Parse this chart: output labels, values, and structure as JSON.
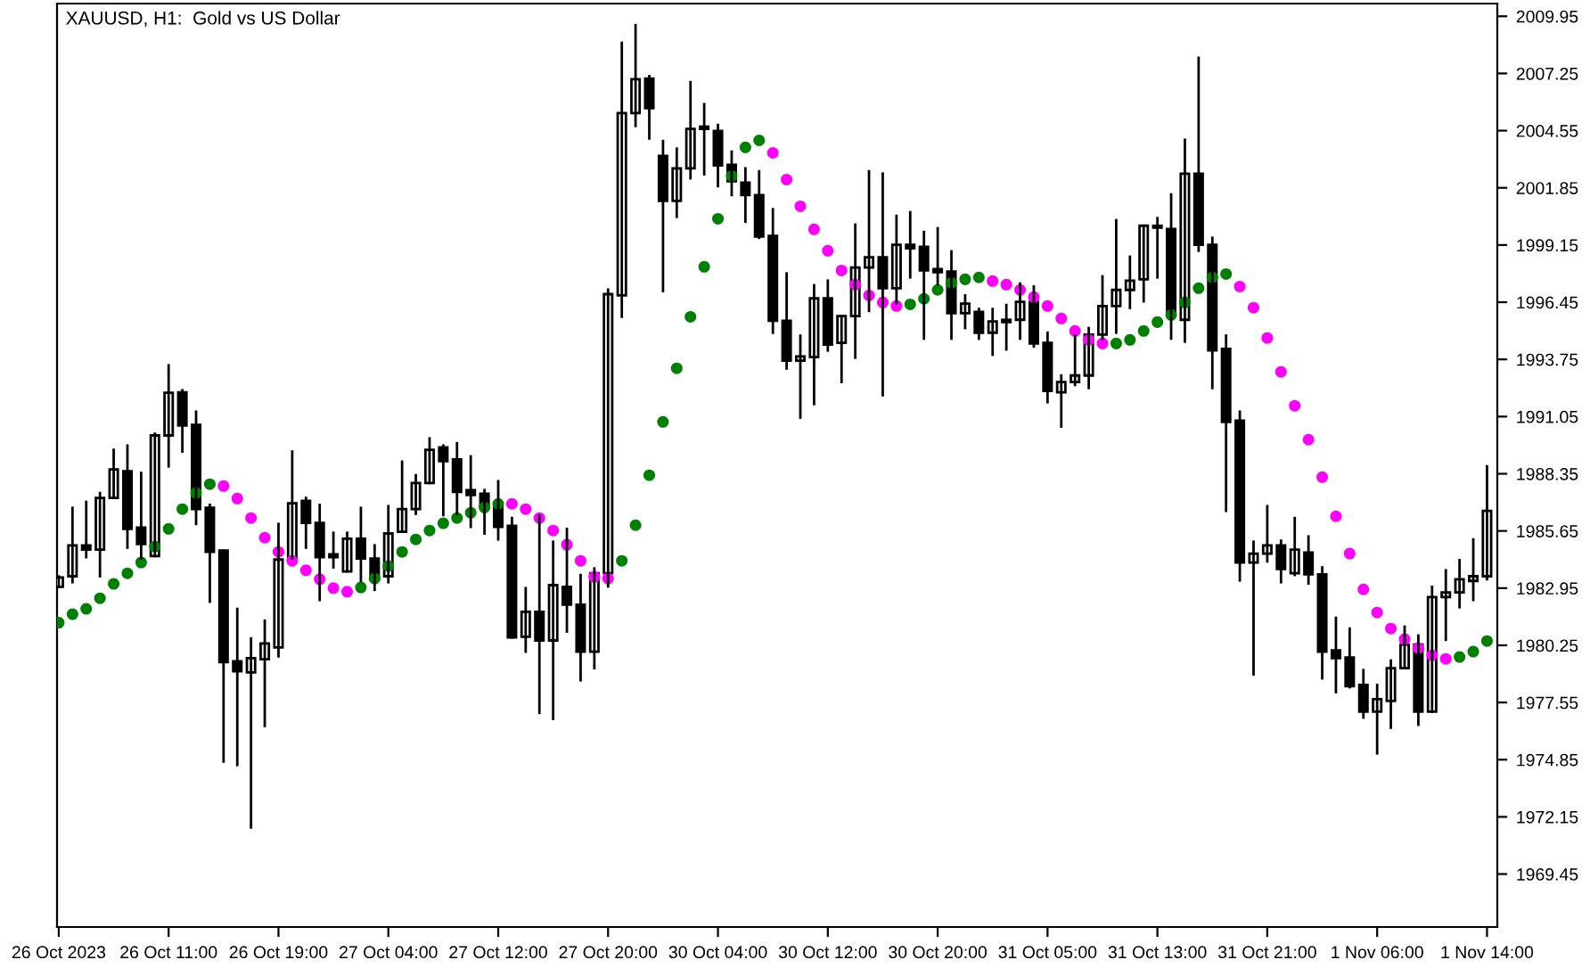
{
  "chart_data": {
    "type": "candlestick",
    "title": "XAUUSD, H1:  Gold vs US Dollar",
    "categories": [
      "26 Oct 2023",
      null,
      null,
      null,
      null,
      null,
      null,
      null,
      "26 Oct 11:00",
      null,
      null,
      null,
      null,
      null,
      null,
      null,
      "26 Oct 19:00",
      null,
      null,
      null,
      null,
      null,
      null,
      null,
      "27 Oct 04:00",
      null,
      null,
      null,
      null,
      null,
      null,
      null,
      "27 Oct 12:00",
      null,
      null,
      null,
      null,
      null,
      null,
      null,
      "27 Oct 20:00",
      null,
      null,
      null,
      null,
      null,
      null,
      null,
      "30 Oct 04:00",
      null,
      null,
      null,
      null,
      null,
      null,
      null,
      "30 Oct 12:00",
      null,
      null,
      null,
      null,
      null,
      null,
      null,
      "30 Oct 20:00",
      null,
      null,
      null,
      null,
      null,
      null,
      null,
      "31 Oct 05:00",
      null,
      null,
      null,
      null,
      null,
      null,
      null,
      "31 Oct 13:00",
      null,
      null,
      null,
      null,
      null,
      null,
      null,
      "31 Oct 21:00",
      null,
      null,
      null,
      null,
      null,
      null,
      null,
      "1 Nov 06:00",
      null,
      null,
      null,
      null,
      null,
      null,
      null,
      "1 Nov 14:00"
    ],
    "ylim": [
      1966.95,
      2010.55
    ],
    "yticks": [
      1969.45,
      1972.15,
      1974.85,
      1977.55,
      1980.25,
      1982.95,
      1985.65,
      1988.35,
      1991.05,
      1993.75,
      1996.45,
      1999.15,
      2001.85,
      2004.55,
      2007.25,
      2009.95
    ],
    "grid": false,
    "series": [
      {
        "color": "#000000",
        "ohlc": [
          [
            1983.01,
            1983.5,
            1983.0,
            1983.45
          ],
          [
            1983.51,
            1986.74,
            1983.23,
            1984.97
          ],
          [
            1984.97,
            1987.02,
            1984.41,
            1984.77
          ],
          [
            1984.77,
            1987.44,
            1983.51,
            1987.21
          ],
          [
            1987.21,
            1989.48,
            1987.21,
            1988.56
          ],
          [
            1988.47,
            1989.68,
            1984.86,
            1985.75
          ],
          [
            1985.81,
            1988.39,
            1984.35,
            1985.03
          ],
          [
            1984.46,
            1990.24,
            1984.46,
            1990.16
          ],
          [
            1990.16,
            1993.47,
            1988.7,
            1992.17
          ],
          [
            1992.2,
            1992.29,
            1989.4,
            1990.63
          ],
          [
            1990.66,
            1991.28,
            1985.98,
            1986.68
          ],
          [
            1986.74,
            1986.88,
            1982.31,
            1984.66
          ],
          [
            1984.72,
            1984.72,
            1974.76,
            1979.45
          ],
          [
            1979.5,
            1981.97,
            1974.6,
            1979.02
          ],
          [
            1978.97,
            1980.57,
            1971.65,
            1979.64
          ],
          [
            1979.59,
            1981.41,
            1976.44,
            1980.34
          ],
          [
            1980.15,
            1985.98,
            1979.73,
            1984.3
          ],
          [
            1984.35,
            1989.4,
            1984.35,
            1986.96
          ],
          [
            1987.07,
            1987.21,
            1984.86,
            1986.03
          ],
          [
            1986.03,
            1986.88,
            1982.39,
            1984.41
          ],
          [
            1984.55,
            1985.56,
            1983.93,
            1984.41
          ],
          [
            1983.74,
            1985.56,
            1983.74,
            1985.28
          ],
          [
            1985.28,
            1986.74,
            1983.29,
            1984.35
          ],
          [
            1984.35,
            1984.97,
            1982.87,
            1983.37
          ],
          [
            1983.51,
            1986.82,
            1983.23,
            1985.53
          ],
          [
            1985.61,
            1988.92,
            1985.61,
            1986.68
          ],
          [
            1986.68,
            1988.28,
            1986.46,
            1987.91
          ],
          [
            1987.91,
            1990.02,
            1987.91,
            1989.48
          ],
          [
            1989.6,
            1989.68,
            1986.4,
            1988.95
          ],
          [
            1989.03,
            1989.79,
            1986.46,
            1987.49
          ],
          [
            1987.58,
            1989.17,
            1985.84,
            1987.35
          ],
          [
            1987.41,
            1987.58,
            1985.53,
            1986.82
          ],
          [
            1986.88,
            1988.0,
            1985.25,
            1985.84
          ],
          [
            1985.89,
            1986.26,
            1980.62,
            1980.62
          ],
          [
            1980.65,
            1982.95,
            1979.95,
            1981.83
          ],
          [
            1981.83,
            1986.37,
            1977.06,
            1980.48
          ],
          [
            1980.48,
            1985.14,
            1976.78,
            1983.09
          ],
          [
            1983.01,
            1985.75,
            1980.9,
            1982.17
          ],
          [
            1982.17,
            1983.57,
            1978.6,
            1979.95
          ],
          [
            1979.95,
            1983.88,
            1979.17,
            1983.65
          ],
          [
            1983.65,
            1997.05,
            1983.03,
            1996.83
          ],
          [
            1996.77,
            2008.69,
            1995.76,
            2005.38
          ],
          [
            2005.38,
            2009.53,
            2004.77,
            2006.98
          ],
          [
            2007.01,
            2007.12,
            2004.18,
            2005.61
          ],
          [
            2003.36,
            2004.06,
            1996.97,
            2001.23
          ],
          [
            2001.23,
            2003.7,
            2000.48,
            2002.77
          ],
          [
            2002.77,
            2006.84,
            2002.3,
            2004.63
          ],
          [
            2004.74,
            2005.8,
            2002.49,
            2004.63
          ],
          [
            2004.54,
            2004.82,
            2001.93,
            2002.91
          ],
          [
            2002.94,
            2003.56,
            2001.51,
            2002.16
          ],
          [
            2002.1,
            2002.77,
            2000.25,
            2001.51
          ],
          [
            2001.51,
            2002.63,
            1999.49,
            1999.55
          ],
          [
            1999.58,
            2000.84,
            1995.01,
            1995.57
          ],
          [
            1995.57,
            1997.81,
            1993.32,
            1993.69
          ],
          [
            1993.69,
            1994.87,
            1991.0,
            1993.89
          ],
          [
            1993.86,
            1997.25,
            1991.64,
            1996.63
          ],
          [
            1996.63,
            1997.47,
            1994.17,
            1994.45
          ],
          [
            1994.53,
            1995.79,
            1992.68,
            1995.79
          ],
          [
            1995.79,
            2000.11,
            1993.83,
            1998.09
          ],
          [
            1998.09,
            2002.63,
            1996.04,
            1998.57
          ],
          [
            1998.57,
            2002.52,
            1992.06,
            1997.11
          ],
          [
            1997.11,
            2000.53,
            1996.41,
            1999.16
          ],
          [
            1999.16,
            2000.7,
            1997.62,
            1998.99
          ],
          [
            1999.07,
            1999.77,
            1994.73,
            1997.95
          ],
          [
            1998.01,
            1999.94,
            1997.31,
            1997.87
          ],
          [
            1997.9,
            1998.85,
            1994.73,
            1995.93
          ],
          [
            1995.93,
            1996.77,
            1995.23,
            1996.38
          ],
          [
            1995.99,
            1996.13,
            1994.73,
            1995.01
          ],
          [
            1995.01,
            1996.13,
            1993.97,
            1995.54
          ],
          [
            1995.62,
            1996.32,
            1994.22,
            1995.51
          ],
          [
            1995.62,
            1997.33,
            1994.73,
            1996.47
          ],
          [
            1996.47,
            1997.19,
            1994.36,
            1994.5
          ],
          [
            1994.53,
            1995.01,
            1991.73,
            1992.26
          ],
          [
            1992.2,
            1992.99,
            1990.58,
            1992.68
          ],
          [
            1992.68,
            1994.87,
            1992.54,
            1992.99
          ],
          [
            1992.99,
            1995.23,
            1992.4,
            1994.92
          ],
          [
            1994.92,
            1997.67,
            1994.73,
            1996.27
          ],
          [
            1996.27,
            2000.32,
            1995.01,
            1997.03
          ],
          [
            1997.03,
            1998.6,
            1996.18,
            1997.47
          ],
          [
            1997.53,
            2000.06,
            1996.49,
            2000.06
          ],
          [
            2000.06,
            2000.42,
            1997.62,
            1999.97
          ],
          [
            1999.91,
            2001.54,
            1994.73,
            1995.9
          ],
          [
            1995.62,
            2004.12,
            1994.59,
            2002.52
          ],
          [
            2002.52,
            2007.99,
            1998.88,
            1999.16
          ],
          [
            1999.16,
            1999.49,
            1992.4,
            1994.17
          ],
          [
            1994.25,
            1994.87,
            1986.6,
            1990.8
          ],
          [
            1990.86,
            1991.28,
            1983.31,
            1984.16
          ],
          [
            1984.16,
            1985.14,
            1978.88,
            1984.58
          ],
          [
            1984.58,
            1986.82,
            1984.21,
            1984.97
          ],
          [
            1984.97,
            1985.19,
            1983.23,
            1983.85
          ],
          [
            1983.65,
            1986.26,
            1983.57,
            1984.77
          ],
          [
            1984.63,
            1985.39,
            1983.17,
            1983.6
          ],
          [
            1983.6,
            1983.93,
            1978.69,
            1979.95
          ],
          [
            1980.01,
            1981.55,
            1978.04,
            1979.64
          ],
          [
            1979.67,
            1981.04,
            1978.27,
            1978.32
          ],
          [
            1978.38,
            1979.08,
            1976.84,
            1977.12
          ],
          [
            1977.12,
            1978.38,
            1975.15,
            1977.71
          ],
          [
            1977.62,
            1979.53,
            1976.36,
            1979.17
          ],
          [
            1979.17,
            1981.13,
            1979.17,
            1980.29
          ],
          [
            1980.29,
            1980.71,
            1976.5,
            1977.12
          ],
          [
            1977.12,
            1983.01,
            1977.12,
            1982.53
          ],
          [
            1982.53,
            1983.79,
            1980.51,
            1982.75
          ],
          [
            1982.75,
            1984.27,
            1982.05,
            1983.37
          ],
          [
            1983.29,
            1985.25,
            1982.39,
            1983.51
          ],
          [
            1983.51,
            1988.7,
            1983.37,
            1986.6
          ]
        ]
      },
      {
        "type": "scatter",
        "color": "#008000",
        "marker": "circle",
        "values": [
          1981.32,
          1981.72,
          1981.97,
          1982.47,
          1983.15,
          1983.65,
          1984.16,
          1984.91,
          1985.75,
          1986.68,
          1987.44,
          1987.86,
          null,
          null,
          null,
          null,
          null,
          null,
          null,
          null,
          null,
          null,
          1982.98,
          1983.4,
          1983.99,
          1984.66,
          1985.25,
          1985.67,
          1986.01,
          1986.26,
          1986.51,
          1986.76,
          1986.93,
          null,
          null,
          null,
          null,
          null,
          null,
          null,
          null,
          1984.24,
          1985.92,
          1988.28,
          1990.8,
          1993.33,
          1995.76,
          1998.12,
          2000.39,
          2002.41,
          2003.76,
          2004.09,
          null,
          null,
          null,
          null,
          null,
          null,
          null,
          null,
          null,
          null,
          1996.35,
          1996.61,
          1997.03,
          1997.36,
          1997.53,
          1997.62,
          null,
          null,
          null,
          null,
          null,
          null,
          null,
          null,
          null,
          1994.5,
          1994.67,
          1995.09,
          1995.51,
          1995.85,
          1996.44,
          1997.11,
          1997.62,
          1997.78,
          null,
          null,
          null,
          null,
          null,
          null,
          null,
          null,
          null,
          null,
          null,
          null,
          null,
          null,
          null,
          null,
          1979.7,
          1979.95,
          1980.45
        ]
      },
      {
        "type": "scatter",
        "color": "#ff00ff",
        "marker": "circle",
        "values": [
          null,
          null,
          null,
          null,
          null,
          null,
          null,
          null,
          null,
          null,
          null,
          null,
          1987.77,
          1987.18,
          1986.26,
          1985.33,
          1984.66,
          1984.24,
          1983.79,
          1983.37,
          1982.95,
          1982.78,
          null,
          null,
          null,
          null,
          null,
          null,
          null,
          null,
          null,
          null,
          null,
          1986.93,
          1986.68,
          1986.26,
          1985.67,
          1985.0,
          1984.24,
          1983.48,
          1983.4,
          null,
          null,
          null,
          null,
          null,
          null,
          null,
          null,
          null,
          null,
          null,
          2003.5,
          2002.24,
          2000.98,
          1999.89,
          1998.88,
          1997.95,
          1997.28,
          1996.77,
          1996.44,
          1996.27,
          null,
          null,
          null,
          null,
          null,
          null,
          1997.45,
          1997.28,
          1997.03,
          1996.69,
          1996.27,
          1995.68,
          1995.09,
          1994.67,
          1994.5,
          null,
          null,
          null,
          null,
          null,
          null,
          null,
          null,
          null,
          1997.19,
          1996.19,
          1994.76,
          1993.16,
          1991.56,
          1989.96,
          1988.19,
          1986.34,
          1984.58,
          1982.89,
          1981.8,
          1981.04,
          1980.54,
          1980.12,
          1979.78,
          1979.61,
          null,
          null,
          null
        ]
      }
    ]
  }
}
